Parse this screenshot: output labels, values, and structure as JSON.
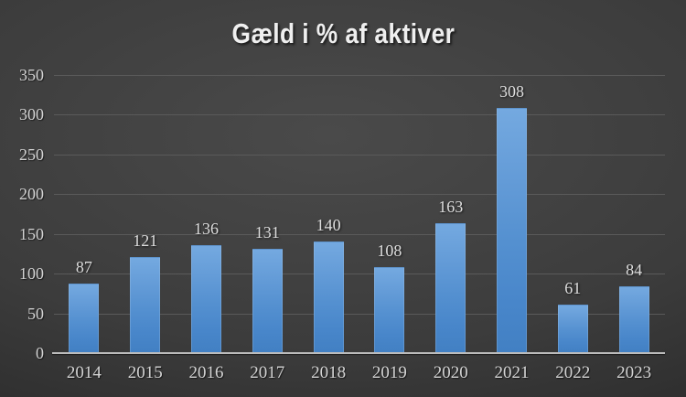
{
  "chart_data": {
    "type": "bar",
    "title": "Gæld i % af aktiver",
    "categories": [
      "2014",
      "2015",
      "2016",
      "2017",
      "2018",
      "2019",
      "2020",
      "2021",
      "2022",
      "2023"
    ],
    "values": [
      87,
      121,
      136,
      131,
      140,
      108,
      163,
      308,
      61,
      84
    ],
    "xlabel": "",
    "ylabel": "",
    "ylim": [
      0,
      350
    ],
    "yticks": [
      0,
      50,
      100,
      150,
      200,
      250,
      300,
      350
    ],
    "grid": true,
    "legend_position": "none",
    "data_labels": true,
    "colors": {
      "bar_top": "#74A9E0",
      "bar_bottom": "#4280C3",
      "background_center": "#4A4A4A",
      "background_edge": "#1F1F1F",
      "gridline": "#5A5A5A",
      "axis_line": "#BCBCBC",
      "title_text": "#EFEFEF",
      "label_text": "#D3D3D3"
    }
  }
}
